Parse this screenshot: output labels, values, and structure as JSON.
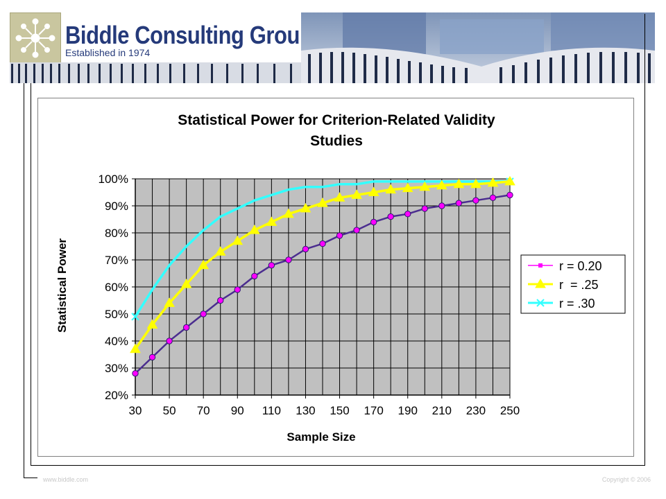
{
  "header": {
    "company_name": "Biddle Consulting Group, Inc.",
    "established": "Established in 1974"
  },
  "footer": {
    "website": "www.biddle.com",
    "copyright": "Copyright © 2006"
  },
  "colors": {
    "r020": "#ff00ff",
    "r025": "#ffff00",
    "r030": "#33ffff",
    "plot_bg": "#c0c0c0",
    "brand": "#253a7a"
  },
  "chart_data": {
    "type": "line",
    "title": "Statistical Power for Criterion-Related Validity Studies",
    "title_lines": [
      "Statistical Power for Criterion-Related Validity",
      "Studies"
    ],
    "xlabel": "Sample Size",
    "ylabel": "Statistical Power",
    "ylim": [
      0.2,
      1.0
    ],
    "yticks": [
      "20%",
      "30%",
      "40%",
      "50%",
      "60%",
      "70%",
      "80%",
      "90%",
      "100%"
    ],
    "xtick_labels": [
      "30",
      "50",
      "70",
      "90",
      "110",
      "130",
      "150",
      "170",
      "190",
      "210",
      "230",
      "250"
    ],
    "x": [
      30,
      40,
      50,
      60,
      70,
      80,
      90,
      100,
      110,
      120,
      130,
      140,
      150,
      160,
      170,
      180,
      190,
      200,
      210,
      220,
      230,
      240,
      250
    ],
    "grid": true,
    "legend_position": "right",
    "series": [
      {
        "name": "r = 0.20",
        "values": [
          0.28,
          0.34,
          0.4,
          0.45,
          0.5,
          0.55,
          0.59,
          0.64,
          0.68,
          0.7,
          0.74,
          0.76,
          0.79,
          0.81,
          0.84,
          0.86,
          0.87,
          0.89,
          0.9,
          0.91,
          0.92,
          0.93,
          0.94
        ]
      },
      {
        "name": "r  = .25",
        "values": [
          0.37,
          0.46,
          0.54,
          0.61,
          0.68,
          0.73,
          0.77,
          0.81,
          0.84,
          0.87,
          0.89,
          0.91,
          0.93,
          0.94,
          0.95,
          0.96,
          0.965,
          0.97,
          0.975,
          0.98,
          0.98,
          0.985,
          0.99
        ]
      },
      {
        "name": "r = .30",
        "values": [
          0.49,
          0.59,
          0.68,
          0.75,
          0.81,
          0.86,
          0.89,
          0.92,
          0.94,
          0.96,
          0.97,
          0.97,
          0.98,
          0.98,
          0.99,
          0.99,
          0.99,
          0.99,
          0.99,
          0.99,
          0.99,
          0.99,
          0.99
        ]
      }
    ]
  }
}
